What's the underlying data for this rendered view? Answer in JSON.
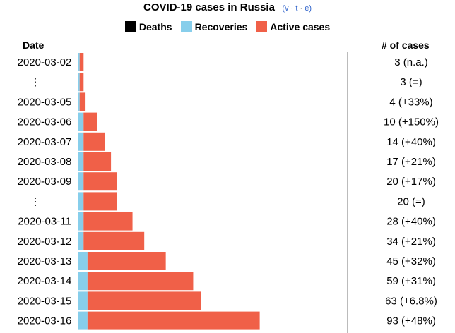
{
  "header": {
    "title": "COVID-19 cases in Russia",
    "vte": [
      "v",
      "t",
      "e"
    ]
  },
  "legend": [
    {
      "label": "Deaths",
      "color": "#000000"
    },
    {
      "label": "Recoveries",
      "color": "#87ceeb"
    },
    {
      "label": "Active cases",
      "color": "#f06048"
    }
  ],
  "columns": {
    "date": "Date",
    "cases": "# of cases"
  },
  "chart_data": {
    "type": "bar",
    "orientation": "horizontal",
    "stacked": true,
    "title": "COVID-19 cases in Russia",
    "rows": [
      {
        "date": "2020-03-02",
        "deaths": 0,
        "recoveries": 1,
        "active": 2,
        "label": "3 (n.a.)"
      },
      {
        "date": "⋮",
        "deaths": 0,
        "recoveries": 1,
        "active": 2,
        "label": "3 (=)"
      },
      {
        "date": "2020-03-05",
        "deaths": 0,
        "recoveries": 1,
        "active": 3,
        "label": "4 (+33%)"
      },
      {
        "date": "2020-03-06",
        "deaths": 0,
        "recoveries": 3,
        "active": 7,
        "label": "10 (+150%)"
      },
      {
        "date": "2020-03-07",
        "deaths": 0,
        "recoveries": 3,
        "active": 11,
        "label": "14 (+40%)"
      },
      {
        "date": "2020-03-08",
        "deaths": 0,
        "recoveries": 3,
        "active": 14,
        "label": "17 (+21%)"
      },
      {
        "date": "2020-03-09",
        "deaths": 0,
        "recoveries": 3,
        "active": 17,
        "label": "20 (+17%)"
      },
      {
        "date": "⋮",
        "deaths": 0,
        "recoveries": 3,
        "active": 17,
        "label": "20 (=)"
      },
      {
        "date": "2020-03-11",
        "deaths": 0,
        "recoveries": 3,
        "active": 25,
        "label": "28 (+40%)"
      },
      {
        "date": "2020-03-12",
        "deaths": 0,
        "recoveries": 3,
        "active": 31,
        "label": "34 (+21%)"
      },
      {
        "date": "2020-03-13",
        "deaths": 0,
        "recoveries": 5,
        "active": 40,
        "label": "45 (+32%)"
      },
      {
        "date": "2020-03-14",
        "deaths": 0,
        "recoveries": 5,
        "active": 54,
        "label": "59 (+31%)"
      },
      {
        "date": "2020-03-15",
        "deaths": 0,
        "recoveries": 5,
        "active": 58,
        "label": "63 (+6.8%)"
      },
      {
        "date": "2020-03-16",
        "deaths": 0,
        "recoveries": 5,
        "active": 88,
        "label": "93 (+48%)"
      }
    ]
  }
}
